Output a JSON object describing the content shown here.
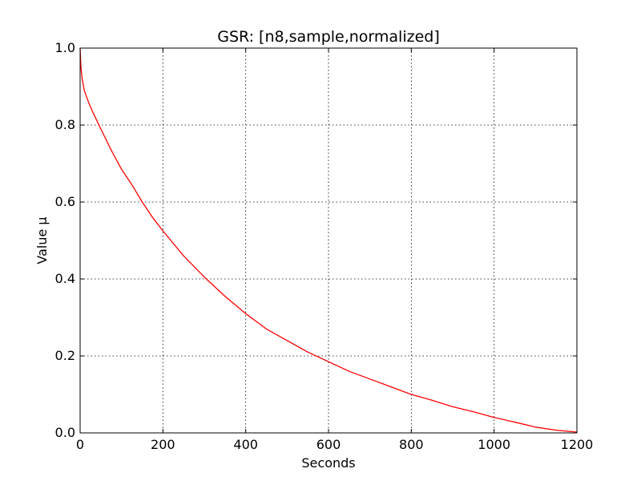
{
  "chart_data": {
    "type": "line",
    "title": "GSR: [n8,sample,normalized]",
    "xlabel": "Seconds",
    "ylabel": "Value μ",
    "xlim": [
      0,
      1200
    ],
    "ylim": [
      0.0,
      1.0
    ],
    "xticks": [
      0,
      200,
      400,
      600,
      800,
      1000,
      1200
    ],
    "xtick_labels": [
      "0",
      "200",
      "400",
      "600",
      "800",
      "1000",
      "1200"
    ],
    "yticks": [
      0.0,
      0.2,
      0.4,
      0.6,
      0.8,
      1.0
    ],
    "ytick_labels": [
      "0.0",
      "0.2",
      "0.4",
      "0.6",
      "0.8",
      "1.0"
    ],
    "grid": true,
    "series": [
      {
        "color": "#ff0000",
        "x": [
          0,
          2,
          5,
          10,
          20,
          30,
          50,
          75,
          100,
          125,
          150,
          175,
          200,
          250,
          300,
          350,
          400,
          450,
          500,
          550,
          600,
          650,
          700,
          750,
          800,
          850,
          900,
          950,
          1000,
          1050,
          1100,
          1150,
          1200
        ],
        "y": [
          1.0,
          0.95,
          0.92,
          0.89,
          0.86,
          0.835,
          0.79,
          0.735,
          0.685,
          0.645,
          0.6,
          0.56,
          0.525,
          0.46,
          0.405,
          0.355,
          0.31,
          0.27,
          0.24,
          0.21,
          0.185,
          0.16,
          0.14,
          0.12,
          0.1,
          0.085,
          0.068,
          0.055,
          0.04,
          0.028,
          0.015,
          0.007,
          0.002
        ]
      }
    ]
  }
}
